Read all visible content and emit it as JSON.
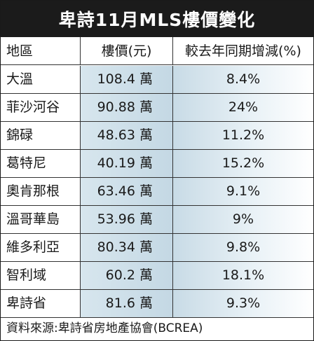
{
  "title": "卑詩11月MLS樓價變化",
  "headers": {
    "region": "地區",
    "price": "樓價(元)",
    "change": "較去年同期增減(%)"
  },
  "rows": [
    {
      "region": "大溫",
      "price": "108.4 萬",
      "change": "8.4%"
    },
    {
      "region": "菲沙河谷",
      "price": "90.88 萬",
      "change": "24%"
    },
    {
      "region": "錦碌",
      "price": "48.63 萬",
      "change": "11.2%"
    },
    {
      "region": "葛特尼",
      "price": "40.19 萬",
      "change": "15.2%"
    },
    {
      "region": "奧肯那根",
      "price": "63.46 萬",
      "change": "9.1%"
    },
    {
      "region": "溫哥華島",
      "price": "53.96 萬",
      "change": "9%"
    },
    {
      "region": "維多利亞",
      "price": "80.34 萬",
      "change": "9.8%"
    },
    {
      "region": "智利域",
      "price": "60.2 萬",
      "change": "18.1%"
    },
    {
      "region": "卑詩省",
      "price": "81.6 萬",
      "change": "9.3%"
    }
  ],
  "footer": "資料來源:卑詩省房地產協會(BCREA)"
}
